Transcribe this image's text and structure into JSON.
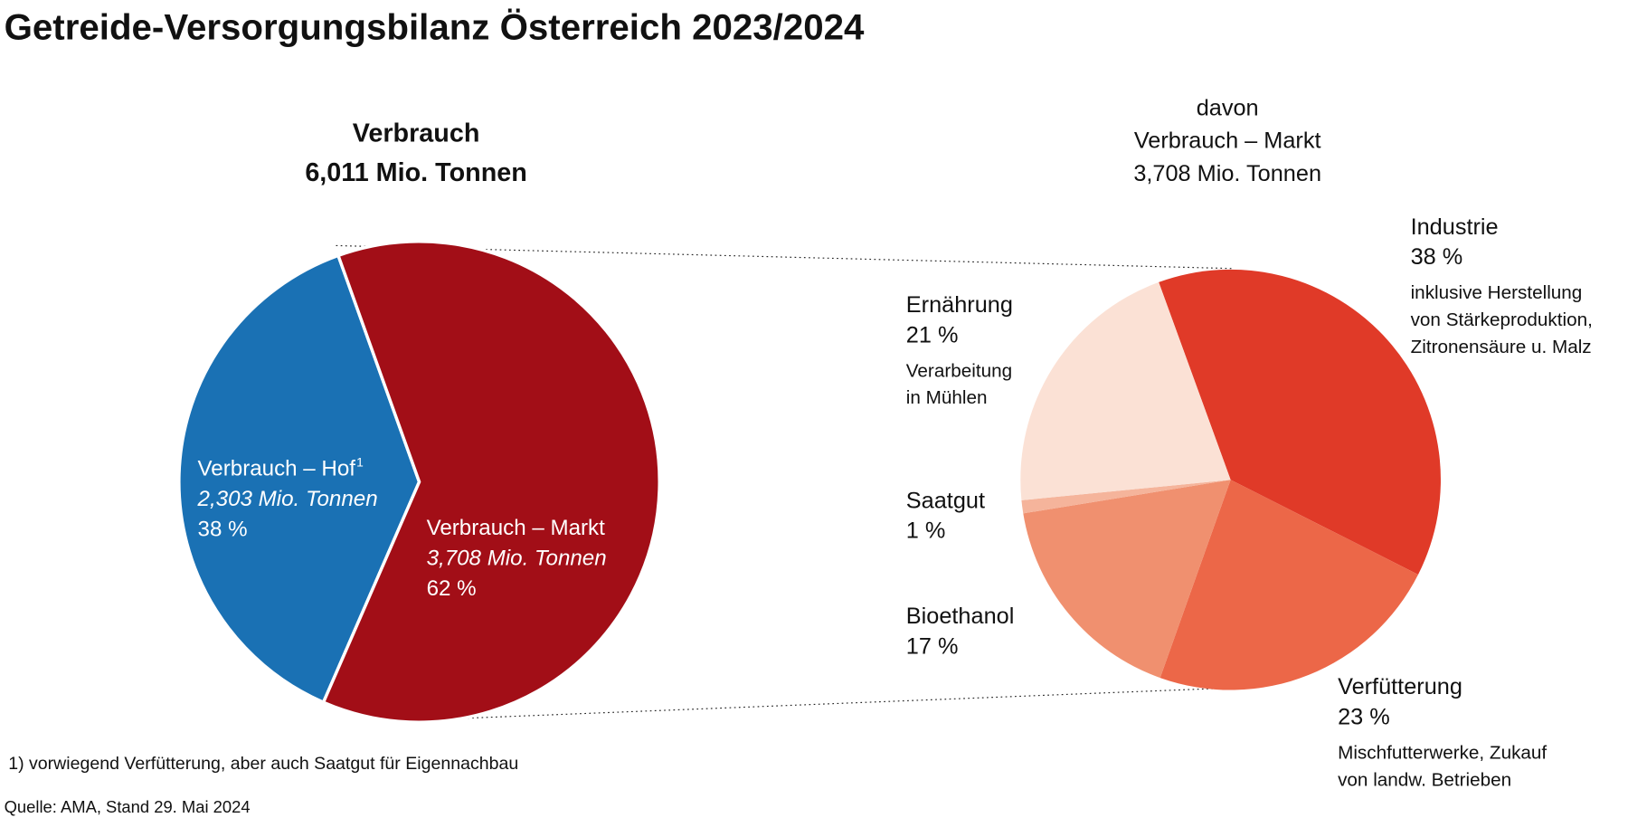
{
  "title": "Getreide-Versorgungsbilanz Österreich 2023/2024",
  "footnote": "1) vorwiegend Verfütterung, aber auch Saatgut für Eigennachbau",
  "source": "Quelle: AMA, Stand 29. Mai 2024",
  "chart_data": [
    {
      "type": "pie",
      "title": "Verbrauch",
      "subtitle": "6,011 Mio. Tonnen",
      "categories": [
        "Verbrauch – Hof",
        "Verbrauch – Markt"
      ],
      "note_marks": [
        "1",
        null
      ],
      "sublabels": [
        "2,303 Mio. Tonnen",
        "3,708 Mio. Tonnen"
      ],
      "values": [
        38,
        62
      ],
      "value_labels": [
        "38 %",
        "62 %"
      ],
      "colors": [
        "#1a71b4",
        "#a20e17"
      ]
    },
    {
      "type": "pie",
      "title_lines": [
        "davon",
        "Verbrauch – Markt",
        "3,708 Mio. Tonnen"
      ],
      "categories": [
        "Industrie",
        "Verfütterung",
        "Bioethanol",
        "Saatgut",
        "Ernährung"
      ],
      "values": [
        38,
        23,
        17,
        1,
        21
      ],
      "value_labels": [
        "38 %",
        "23 %",
        "17 %",
        "1 %",
        "21 %"
      ],
      "descriptions": [
        [
          "inklusive Herstellung",
          "von Stärkeproduktion,",
          "Zitronensäure u. Malz"
        ],
        [
          "Mischfutterwerke, Zukauf",
          "von landw. Betrieben"
        ],
        [],
        [],
        [
          "Verarbeitung",
          "in Mühlen"
        ]
      ],
      "colors": [
        "#e03a28",
        "#ec6748",
        "#f0906f",
        "#f5b49b",
        "#fbe1d5"
      ]
    }
  ]
}
